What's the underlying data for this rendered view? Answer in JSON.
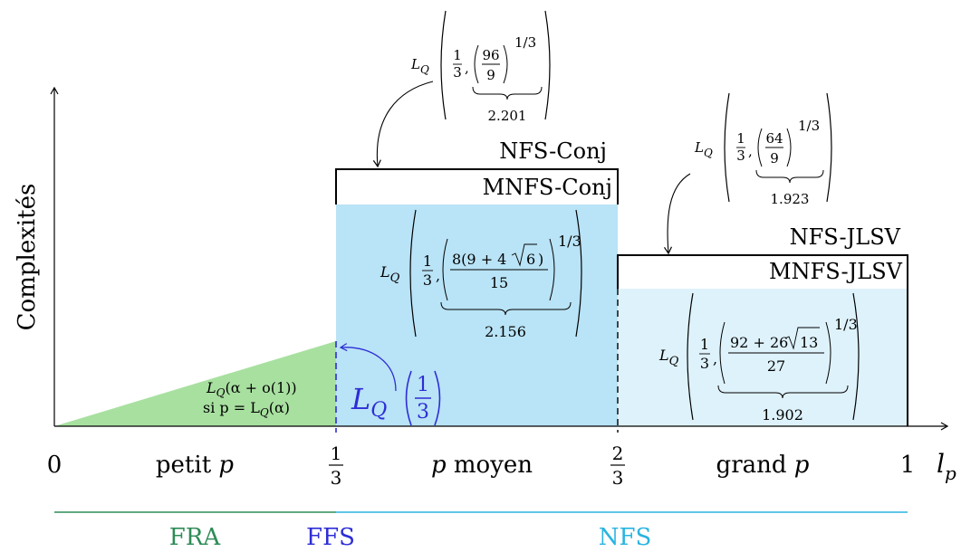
{
  "axes": {
    "y_label": "Complexités",
    "x_var": "l",
    "x_var_sub": "p",
    "ticks": [
      {
        "label": "0"
      },
      {
        "num": "1",
        "den": "3"
      },
      {
        "num": "2",
        "den": "3"
      },
      {
        "label": "1"
      }
    ]
  },
  "regions": {
    "small": {
      "word": "petit",
      "var": "p"
    },
    "medium": {
      "var": "p",
      "word": "moyen"
    },
    "large": {
      "word": "grand",
      "var": "p"
    }
  },
  "small_formula": {
    "line1": "L",
    "line1_sub": "Q",
    "line1_rest": "(α + o(1))",
    "line2_pre": "si p = L",
    "line2_sub": "Q",
    "line2_rest": "(α)"
  },
  "ffs": {
    "L": "L",
    "sub": "Q",
    "num": "1",
    "den": "3"
  },
  "boxes": {
    "nfs_conj": "NFS-Conj",
    "mnfs_conj": "MNFS-Conj",
    "nfs_jlsv": "NFS-JLSV",
    "mnfs_jlsv": "MNFS-JLSV"
  },
  "formulas": {
    "nfs_conj": {
      "L": "L",
      "sub": "Q",
      "third_num": "1",
      "third_den": "3",
      "num": "96",
      "den": "9",
      "exp": "1/3",
      "value": "2.201"
    },
    "nfs_jlsv": {
      "L": "L",
      "sub": "Q",
      "third_num": "1",
      "third_den": "3",
      "num": "64",
      "den": "9",
      "exp": "1/3",
      "value": "1.923"
    },
    "mnfs_conj": {
      "L": "L",
      "sub": "Q",
      "third_num": "1",
      "third_den": "3",
      "num_pre": "8(9 + 4",
      "num_rad": "6",
      "num_post": ")",
      "den": "15",
      "exp": "1/3",
      "value": "2.156"
    },
    "mnfs_jlsv": {
      "L": "L",
      "sub": "Q",
      "third_num": "1",
      "third_den": "3",
      "num_pre": "92 + 26",
      "num_rad": "13",
      "num_post": "",
      "den": "27",
      "exp": "1/3",
      "value": "1.902"
    }
  },
  "algorithms": {
    "fra": "FRA",
    "ffs": "FFS",
    "nfs": "NFS"
  },
  "colors": {
    "green": "#2e8b57",
    "green_fill": "#a8e0a0",
    "blue": "#2d2dd6",
    "cyan": "#28b4e0",
    "cyan_fill": "#b9e3f6",
    "cyan_fill_light": "#def2fb"
  }
}
